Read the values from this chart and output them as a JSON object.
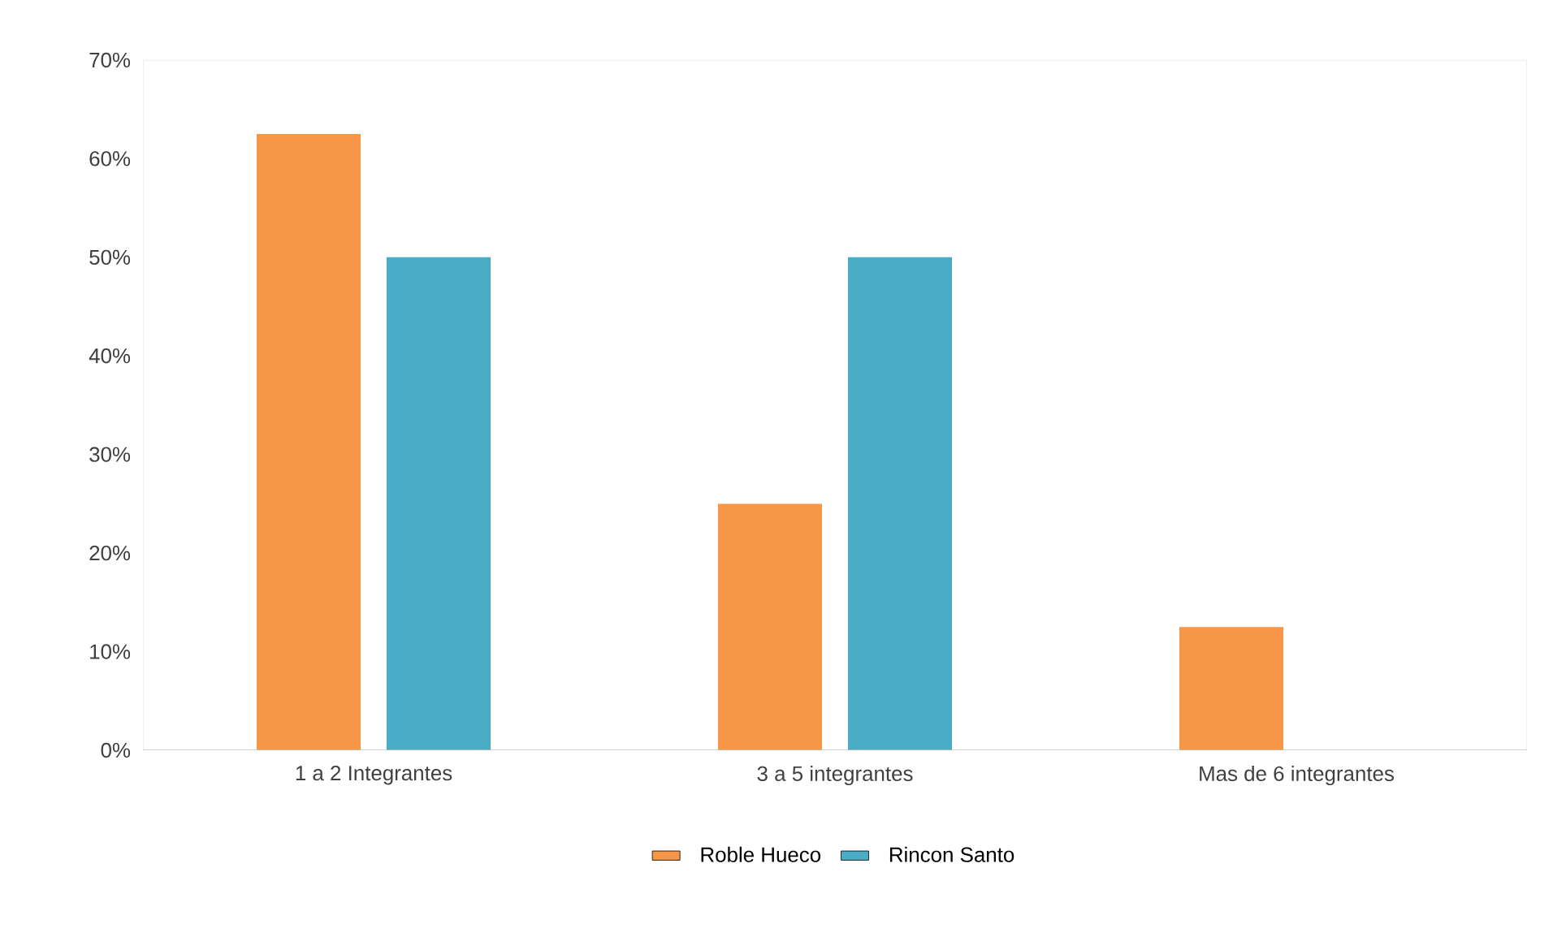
{
  "chart_data": {
    "type": "bar",
    "categories": [
      "1 a 2 Integrantes",
      "3 a 5 integrantes",
      "Mas de 6 integrantes"
    ],
    "series": [
      {
        "name": "Roble Hueco",
        "color": "#f79646",
        "values": [
          62.5,
          25,
          12.5
        ]
      },
      {
        "name": "Rincon Santo",
        "color": "#4bacc6",
        "values": [
          50,
          50,
          0
        ]
      }
    ],
    "ylim": [
      0,
      70
    ],
    "yticks": [
      {
        "value": 0,
        "label": "0%"
      },
      {
        "value": 10,
        "label": "10%"
      },
      {
        "value": 20,
        "label": "20%"
      },
      {
        "value": 30,
        "label": "30%"
      },
      {
        "value": 40,
        "label": "40%"
      },
      {
        "value": 50,
        "label": "50%"
      },
      {
        "value": 60,
        "label": "60%"
      },
      {
        "value": 70,
        "label": "70%"
      }
    ],
    "legend": "bottom"
  }
}
